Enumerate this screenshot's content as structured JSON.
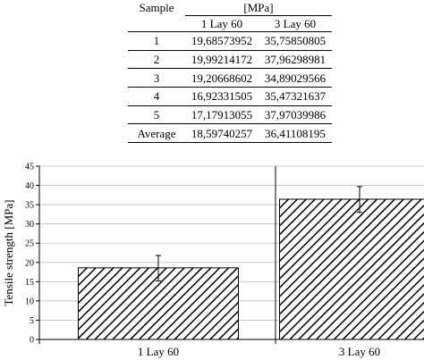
{
  "table": {
    "sample_header": "Sample",
    "unit_header": "[MPa]",
    "columns": [
      "1 Lay 60",
      "3 Lay 60"
    ],
    "rows": [
      {
        "label": "1",
        "v1": "19,68573952",
        "v2": "35,75850805"
      },
      {
        "label": "2",
        "v1": "19,99214172",
        "v2": "37,96298981"
      },
      {
        "label": "3",
        "v1": "19,20668602",
        "v2": "34,89029566"
      },
      {
        "label": "4",
        "v1": "16,92331505",
        "v2": "35,47321637"
      },
      {
        "label": "5",
        "v1": "17,17913055",
        "v2": "37,97039986"
      },
      {
        "label": "Average",
        "v1": "18,59740257",
        "v2": "36,41108195"
      }
    ]
  },
  "chart_data": {
    "type": "bar",
    "categories": [
      "1 Lay 60",
      "3 Lay 60"
    ],
    "values": [
      18.6,
      36.41
    ],
    "error_bars": [
      [
        15.2,
        21.8
      ],
      [
        33.0,
        39.7
      ]
    ],
    "ylabel": "Tensile strength [MPa]",
    "xlabel": "",
    "ylim": [
      0,
      45
    ],
    "yticks": [
      "0",
      "5",
      "10",
      "15",
      "20",
      "25",
      "30",
      "35",
      "40",
      "45"
    ],
    "grid": true,
    "bar_fill": "diagonal-hatch",
    "colors": {
      "bar_stroke": "#000000",
      "hatch": "#000000",
      "grid": "#c8c8c8"
    }
  }
}
